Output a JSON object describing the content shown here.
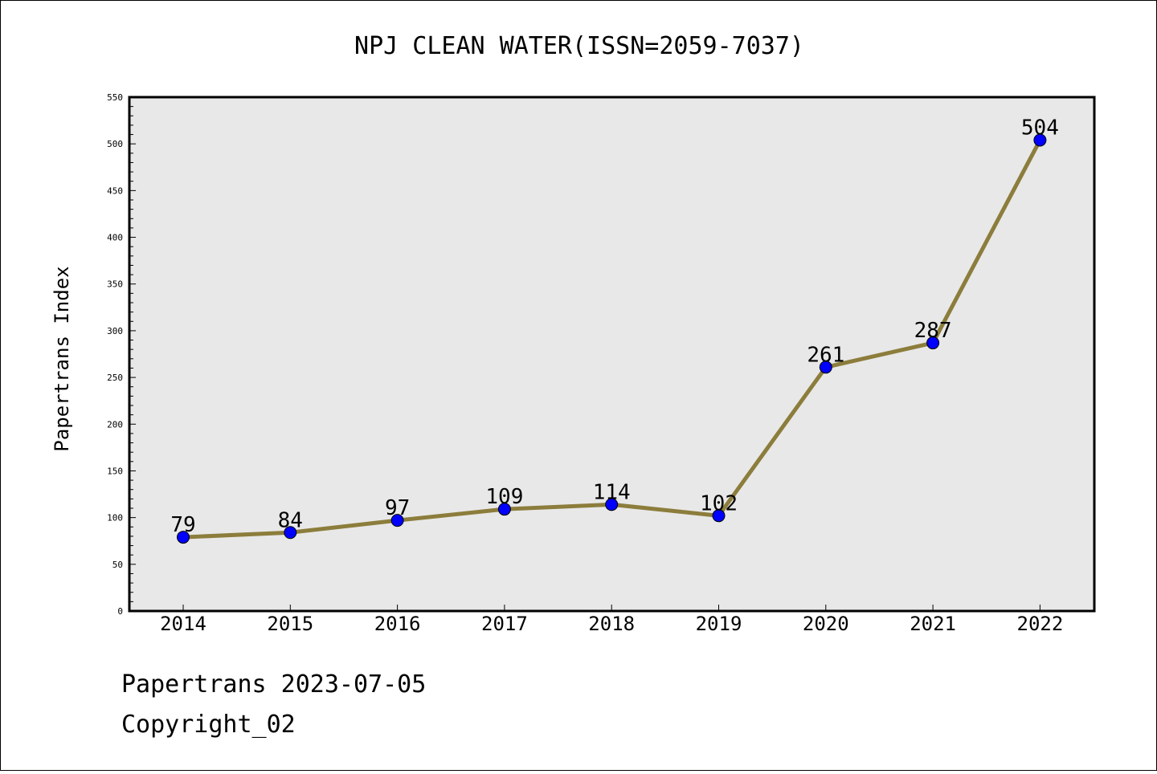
{
  "chart_data": {
    "type": "line",
    "title": "NPJ CLEAN WATER(ISSN=2059-7037)",
    "xlabel": "",
    "ylabel": "Papertrans Index",
    "categories": [
      "2014",
      "2015",
      "2016",
      "2017",
      "2018",
      "2019",
      "2020",
      "2021",
      "2022"
    ],
    "series": [
      {
        "values": [
          79,
          84,
          97,
          109,
          114,
          102,
          261,
          287,
          504
        ]
      }
    ],
    "data_labels": [
      "79",
      "84",
      "97",
      "109",
      "114",
      "102",
      "261",
      "287",
      "504"
    ],
    "ylim": [
      0,
      550
    ],
    "yticks": [
      0,
      50,
      100,
      150,
      200,
      250,
      300,
      350,
      400,
      450,
      500,
      550
    ],
    "ytick_labels": [
      "0",
      "50",
      "100",
      "150",
      "200",
      "250",
      "300",
      "350",
      "400",
      "450",
      "500",
      "550"
    ],
    "grid": false,
    "colors": {
      "line": "#8c7d3c",
      "marker": "#0000ff",
      "plot_background": "#e8e8e8"
    }
  },
  "footer": {
    "line1": "Papertrans 2023-07-05",
    "line2": "Copyright_02"
  }
}
